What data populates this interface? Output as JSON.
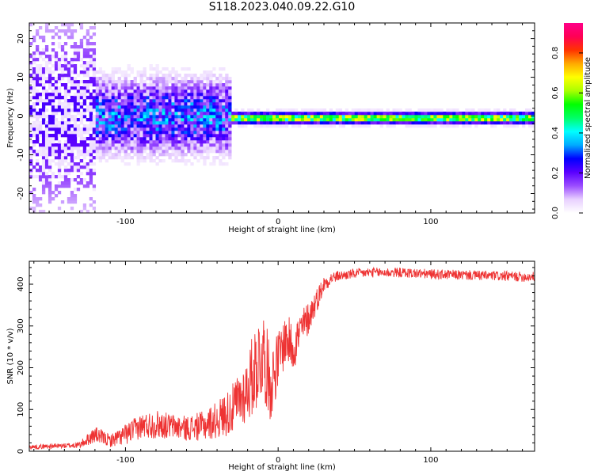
{
  "title": "S118.2023.040.09.22.G10",
  "chart_data": [
    {
      "type": "heatmap",
      "xlabel": "Height of straight line (km)",
      "ylabel": "Frequency (Hz)",
      "xlim": [
        -163,
        168
      ],
      "ylim": [
        -25,
        24
      ],
      "xticks": [
        -100,
        0,
        100
      ],
      "yticks": [
        -20,
        -10,
        0,
        10,
        20
      ],
      "colorbar": {
        "label": "Normalized spectral amplitude",
        "range": [
          0,
          0.95
        ],
        "ticks": [
          0.0,
          0.2,
          0.4,
          0.6,
          0.8
        ],
        "colors": [
          "#ffffff",
          "#e8d0ff",
          "#9b4dff",
          "#5a00ff",
          "#0000ff",
          "#00aaff",
          "#00ffff",
          "#00ff66",
          "#00ff00",
          "#aaff00",
          "#ffff00",
          "#ffaa00",
          "#ff3300",
          "#ff0055",
          "#ff0088"
        ]
      },
      "features": [
        {
          "x_range": [
            -163,
            -120
          ],
          "freq_center": 0,
          "freq_spread": 24,
          "amplitude": 0.1
        },
        {
          "x_range": [
            -120,
            -30
          ],
          "freq_center": 0,
          "freq_spread": 8,
          "amplitude": 0.25
        },
        {
          "x_range": [
            -30,
            168
          ],
          "freq_center": -0.5,
          "freq_spread": 1.2,
          "amplitude": 0.6
        }
      ]
    },
    {
      "type": "line",
      "xlabel": "Height of straight line (km)",
      "ylabel": "SNR (10 * v/v)",
      "xlim": [
        -163,
        168
      ],
      "ylim": [
        0,
        455
      ],
      "xticks": [
        -100,
        0,
        100
      ],
      "yticks": [
        0,
        100,
        200,
        300,
        400
      ],
      "color": "#ee3333",
      "x": [
        -163,
        -150,
        -140,
        -130,
        -120,
        -110,
        -100,
        -90,
        -80,
        -70,
        -60,
        -50,
        -40,
        -30,
        -20,
        -15,
        -10,
        -5,
        0,
        5,
        10,
        15,
        20,
        25,
        30,
        35,
        40,
        50,
        60,
        80,
        100,
        120,
        140,
        160,
        168
      ],
      "y": [
        10,
        12,
        13,
        15,
        40,
        25,
        40,
        60,
        65,
        60,
        55,
        60,
        75,
        100,
        150,
        200,
        240,
        160,
        220,
        270,
        250,
        290,
        320,
        360,
        400,
        415,
        420,
        425,
        428,
        428,
        424,
        422,
        420,
        418,
        418
      ],
      "noise": [
        5,
        6,
        6,
        8,
        20,
        15,
        25,
        30,
        35,
        30,
        30,
        35,
        45,
        60,
        80,
        110,
        110,
        90,
        70,
        60,
        60,
        50,
        40,
        30,
        20,
        15,
        12,
        12,
        12,
        12,
        12,
        12,
        12,
        12,
        12
      ]
    }
  ]
}
